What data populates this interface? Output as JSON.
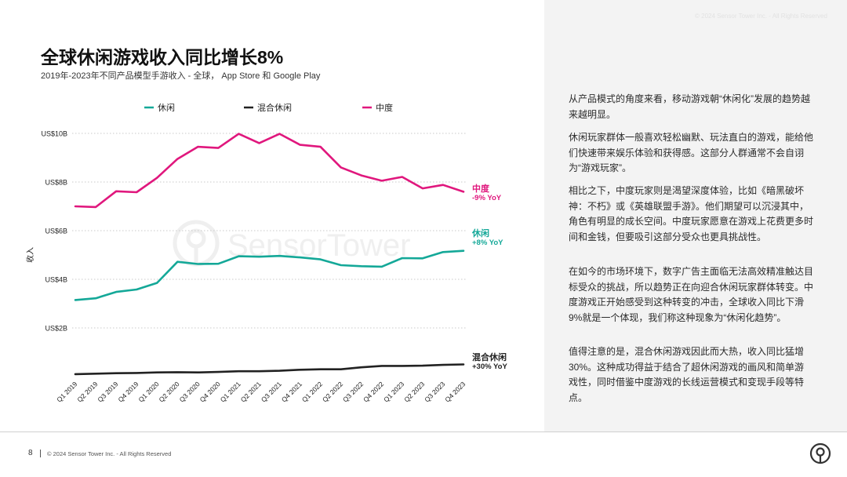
{
  "header": {
    "faint_text": "© 2024 Sensor Tower Inc. - All Rights Reserved"
  },
  "title": "全球休闲游戏收入同比增长8%",
  "subtitle": "2019年-2023年不同产品模型手游收入 - 全球， App Store 和 Google Play",
  "watermark": "SensorTower",
  "chart_data": {
    "type": "line",
    "title": "全球休闲游戏收入同比增长8%",
    "subtitle": "2019年-2023年不同产品模型手游收入 - 全球， App Store 和 Google Play",
    "xlabel": "",
    "ylabel": "收入",
    "ylim": [
      0,
      10
    ],
    "yticks": [
      2,
      4,
      6,
      8,
      10
    ],
    "ytick_labels": [
      "US$2B",
      "US$4B",
      "US$6B",
      "US$8B",
      "US$10B"
    ],
    "grid": true,
    "legend_position": "top",
    "categories": [
      "Q1 2019",
      "Q2 2019",
      "Q3 2019",
      "Q4 2019",
      "Q1 2020",
      "Q2 2020",
      "Q3 2020",
      "Q4 2020",
      "Q1 2021",
      "Q2 2021",
      "Q3 2021",
      "Q4 2021",
      "Q1 2022",
      "Q2 2022",
      "Q3 2022",
      "Q4 2022",
      "Q1 2023",
      "Q2 2023",
      "Q3 2023",
      "Q4 2023"
    ],
    "series": [
      {
        "name": "休闲",
        "color": "#14a898",
        "values": [
          3.15,
          3.22,
          3.48,
          3.58,
          3.85,
          4.72,
          4.63,
          4.64,
          4.95,
          4.93,
          4.96,
          4.9,
          4.82,
          4.58,
          4.54,
          4.52,
          4.87,
          4.86,
          5.12,
          5.17
        ],
        "end_label": "休闲",
        "end_yoy": "+8% YoY"
      },
      {
        "name": "混合休闲",
        "color": "#222222",
        "values": [
          0.1,
          0.12,
          0.14,
          0.15,
          0.17,
          0.18,
          0.17,
          0.19,
          0.22,
          0.22,
          0.24,
          0.28,
          0.3,
          0.3,
          0.38,
          0.44,
          0.44,
          0.45,
          0.48,
          0.5
        ],
        "end_label": "混合休闲",
        "end_yoy": "+30% YoY"
      },
      {
        "name": "中度",
        "color": "#e0177d",
        "values": [
          7.0,
          6.97,
          7.62,
          7.58,
          8.17,
          8.95,
          9.45,
          9.4,
          9.98,
          9.6,
          9.98,
          9.53,
          9.45,
          8.6,
          8.27,
          8.05,
          8.21,
          7.74,
          7.88,
          7.6
        ],
        "end_label": "中度",
        "end_yoy": "-9% YoY"
      }
    ]
  },
  "paragraphs": [
    "从产品模式的角度来看，移动游戏朝“休闲化”发展的趋势越来越明显。",
    "休闲玩家群体一般喜欢轻松幽默、玩法直白的游戏，能给他们快速带来娱乐体验和获得感。这部分人群通常不会自诩为“游戏玩家”。",
    "相比之下，中度玩家则是渴望深度体验，比如《暗黑破坏神：不朽》或《英雄联盟手游》。他们期望可以沉浸其中，角色有明显的成长空间。中度玩家愿意在游戏上花费更多时间和金钱，但要吸引这部分受众也更具挑战性。",
    "在如今的市场环境下，数字广告主面临无法高效精准触达目标受众的挑战，所以趋势正在向迎合休闲玩家群体转变。中度游戏正开始感受到这种转变的冲击，全球收入同比下滑9%就是一个体现，我们称这种现象为“休闲化趋势”。",
    "值得注意的是，混合休闲游戏因此而大热，收入同比猛增30%。这种成功得益于结合了超休闲游戏的画风和简单游戏性，同时借鉴中度游戏的长线运营模式和变现手段等特点。"
  ],
  "footer": {
    "page_number": "8",
    "copyright": "© 2024 Sensor Tower Inc. - All Rights Reserved"
  }
}
